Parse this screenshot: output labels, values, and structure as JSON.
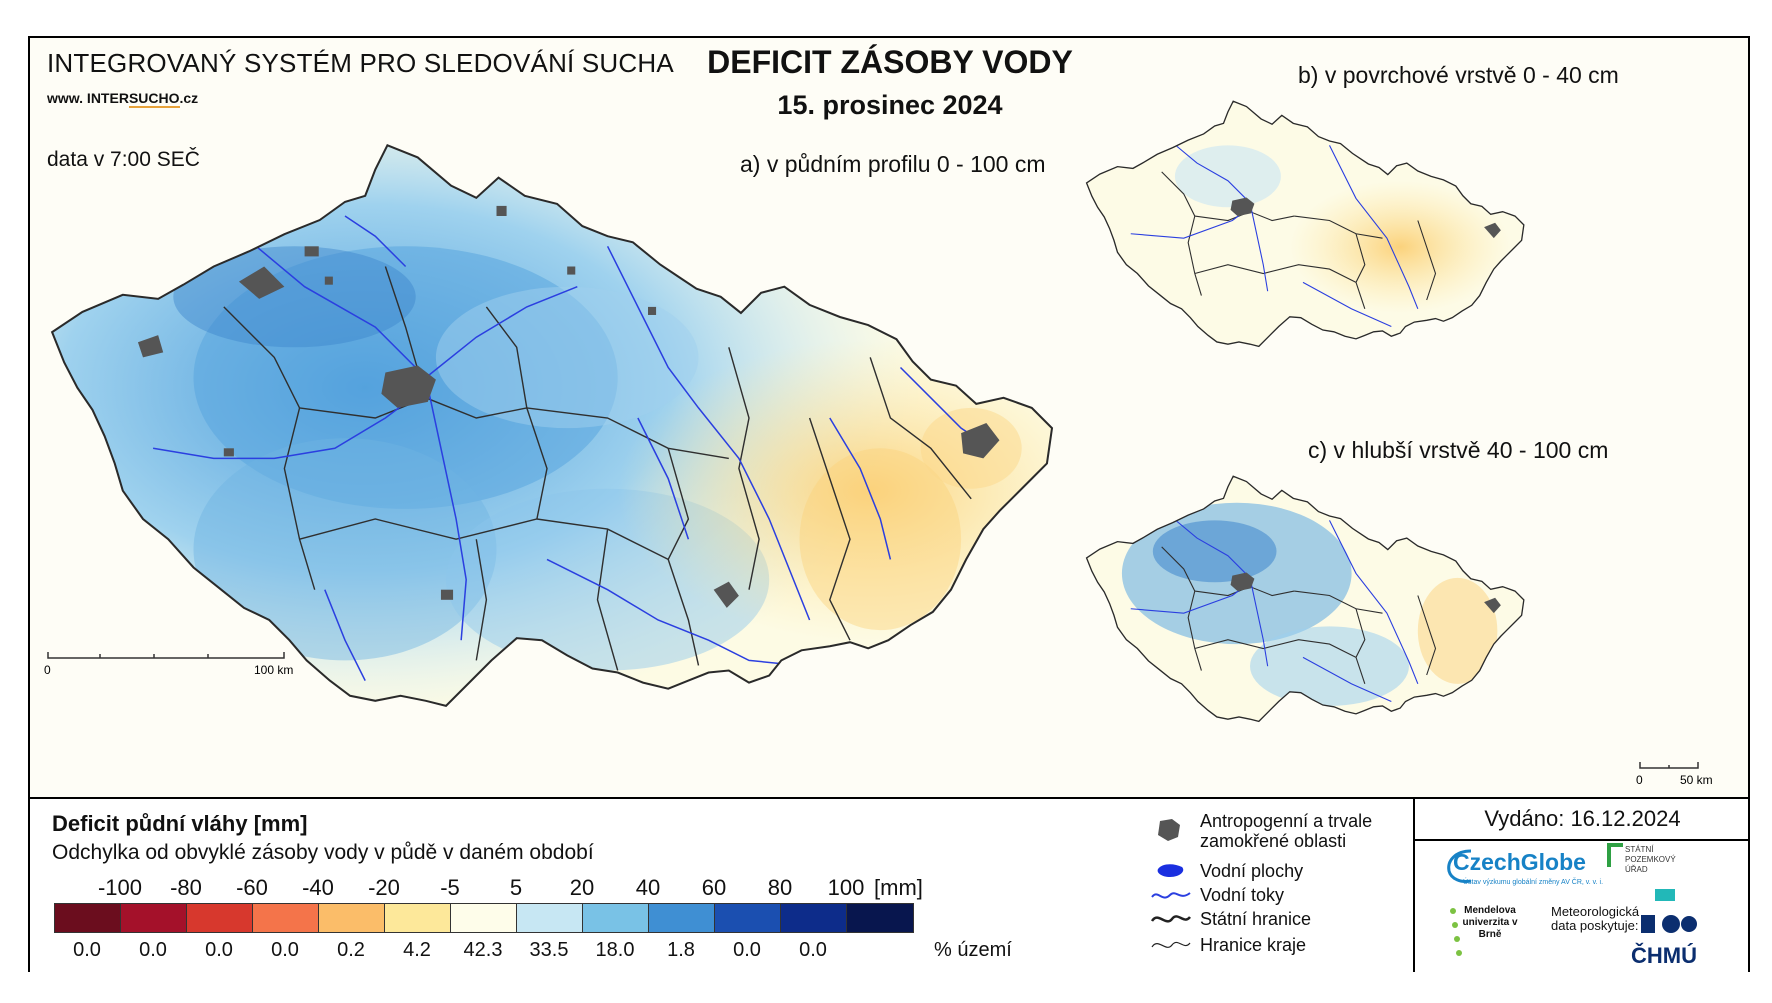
{
  "header": {
    "system_title": "INTEGROVANÝ SYSTÉM PRO SLEDOVÁNÍ SUCHA",
    "website_prefix": "www. INTER",
    "website_highlight": "SUCHO",
    "website_suffix": ".cz",
    "data_time": "data v 7:00 SEČ",
    "main_title": "DEFICIT ZÁSOBY VODY",
    "date": "15. prosinec 2024"
  },
  "maps": {
    "a_title": "a) v půdním profilu 0 - 100 cm",
    "b_title": "b) v povrchové vrstvě 0 - 40 cm",
    "c_title": "c) v hlubší vrstvě 40 - 100 cm",
    "scale_a": {
      "start": "0",
      "end": "100 km"
    },
    "scale_bc": {
      "start": "0",
      "end": "50 km"
    }
  },
  "legend": {
    "title": "Deficit půdní vláhy  [mm]",
    "subtitle": "Odchylka od obvyklé zásoby vody v půdě v daném období",
    "ticks": [
      "-100",
      "-80",
      "-60",
      "-40",
      "-20",
      "-5",
      "5",
      "20",
      "40",
      "60",
      "80",
      "100"
    ],
    "unit": "[mm]",
    "colors": [
      "#6b0d1e",
      "#a4112a",
      "#d7382d",
      "#f4744a",
      "#fbbd69",
      "#fde89a",
      "#fefdea",
      "#c7e7f3",
      "#79c2e6",
      "#3f8fd3",
      "#1b4fb0",
      "#0d2c8a",
      "#08164e"
    ],
    "percentages": [
      "0.0",
      "0.0",
      "0.0",
      "0.0",
      "0.2",
      "4.2",
      "42.3",
      "33.5",
      "18.0",
      "1.8",
      "0.0",
      "0.0"
    ],
    "pct_label": "% území"
  },
  "symbols": [
    {
      "icon": "urban-area-icon",
      "label": "Antropogenní a trvale zamokřené oblasti"
    },
    {
      "icon": "water-body-icon",
      "label": "Vodní plochy"
    },
    {
      "icon": "river-icon",
      "label": "Vodní toky"
    },
    {
      "icon": "state-border-icon",
      "label": "Státní hranice"
    },
    {
      "icon": "region-border-icon",
      "label": "Hranice kraje"
    }
  ],
  "footer": {
    "issued": "Vydáno: 16.12.2024",
    "czechglobe": "CzechGlobe",
    "czechglobe_sub": "Ústav výzkumu globální změny AV ČR, v. v. i.",
    "spu": "STÁTNÍ POZEMKOVÝ ÚŘAD",
    "mendelu": "Mendelova univerzita v Brně",
    "meteo": "Meteorologická data poskytuje:",
    "chmu": "ČHMÚ"
  }
}
